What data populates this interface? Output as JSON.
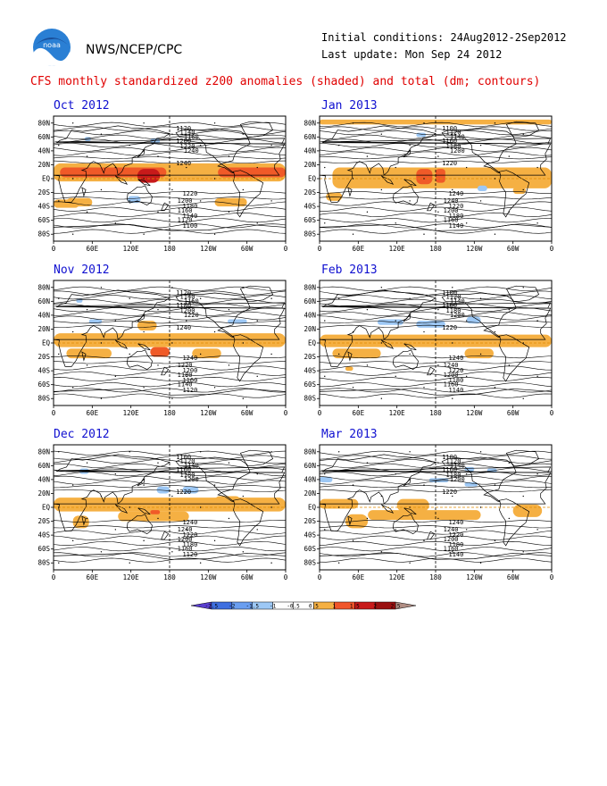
{
  "header": {
    "org": "NWS/NCEP/CPC",
    "initial_conditions": "Initial conditions: 24Aug2012-2Sep2012",
    "last_update": "Last update: Mon Sep 24 2012",
    "title": "CFS monthly standardized z200 anomalies (shaded) and total (dm; contours)"
  },
  "logo": {
    "text": "noaa",
    "icon": "noaa-logo-icon"
  },
  "axes": {
    "x_ticks": [
      "0",
      "60E",
      "120E",
      "180",
      "120W",
      "60W",
      "0"
    ],
    "y_ticks": [
      "80N",
      "60N",
      "40N",
      "20N",
      "EQ",
      "20S",
      "40S",
      "60S",
      "80S"
    ]
  },
  "panels": [
    {
      "title": "Oct 2012",
      "labels": [
        "1120",
        "1140",
        "1160",
        "1200",
        "1220",
        "1240",
        "1240",
        "1220",
        "1200",
        "1180",
        "1160",
        "1140",
        "1120",
        "1100"
      ]
    },
    {
      "title": "Jan 2013",
      "labels": [
        "1100",
        "1120",
        "1140",
        "1160",
        "1180",
        "1200",
        "1220",
        "1240",
        "1240",
        "1220",
        "1200",
        "1180",
        "1160",
        "1140"
      ]
    },
    {
      "title": "Nov 2012",
      "labels": [
        "1120",
        "1140",
        "1160",
        "1180",
        "1200",
        "1220",
        "1240",
        "1240",
        "1220",
        "1200",
        "1180",
        "1160",
        "1140",
        "1120"
      ]
    },
    {
      "title": "Feb 2013",
      "labels": [
        "1100",
        "1120",
        "1140",
        "1160",
        "1180",
        "1200",
        "1220",
        "1240",
        "1240",
        "1220",
        "1200",
        "1180",
        "1160",
        "1140"
      ]
    },
    {
      "title": "Dec 2012",
      "labels": [
        "1100",
        "1120",
        "1140",
        "1160",
        "1180",
        "1200",
        "1220",
        "1240",
        "1240",
        "1220",
        "1200",
        "1180",
        "1160",
        "1120"
      ]
    },
    {
      "title": "Mar 2013",
      "labels": [
        "1100",
        "1120",
        "1140",
        "1160",
        "1180",
        "1200",
        "1220",
        "1240",
        "1240",
        "1220",
        "1200",
        "1180",
        "1160",
        "1140"
      ]
    }
  ],
  "colorbar": {
    "ticks": [
      "-2.5",
      "-2",
      "-1.5",
      "-1",
      "-0.5",
      "0.5",
      "1",
      "1.5",
      "2",
      "2.5"
    ],
    "colors": [
      "#5a3fcf",
      "#3f6fe0",
      "#6a9ef0",
      "#9dc8f5",
      "#ffffff",
      "#ffffff",
      "#f5b043",
      "#f0552a",
      "#c81a1a",
      "#9a1010",
      "#b08e84"
    ]
  },
  "colors": {
    "title": "#e00000",
    "panel_title": "#1010d0",
    "positive": "#f5b043",
    "strong_positive": "#f05a28",
    "very_strong": "#c81a1a",
    "negative": "#9dc8f5",
    "strong_negative": "#6a9ef0"
  }
}
